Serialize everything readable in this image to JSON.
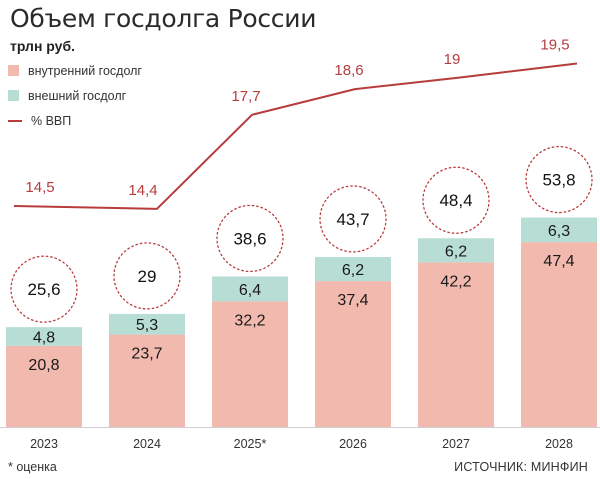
{
  "title": "Объем госдолга России",
  "unit": "трлн руб.",
  "legend": {
    "internal": "внутренний госдолг",
    "external": "внешний госдолг",
    "gdp": "% ВВП"
  },
  "footnote": "* оценка",
  "source": "ИСТОЧНИК: МИНФИН",
  "colors": {
    "internal": "#f2b9ae",
    "external": "#b7ddd5",
    "line": "#b83c3c",
    "circle": "#b83c3c"
  },
  "chart_data": {
    "type": "bar",
    "categories": [
      "2023",
      "2024",
      "2025*",
      "2026",
      "2027",
      "2028"
    ],
    "series": [
      {
        "name": "внутренний госдолг",
        "values": [
          20.8,
          23.7,
          32.2,
          37.4,
          42.2,
          47.4
        ]
      },
      {
        "name": "внешний госдолг",
        "values": [
          4.8,
          5.3,
          6.4,
          6.2,
          6.2,
          6.3
        ]
      }
    ],
    "totals": [
      "25,6",
      "29",
      "38,6",
      "43,7",
      "48,4",
      "53,8"
    ],
    "internal_labels": [
      "20,8",
      "23,7",
      "32,2",
      "37,4",
      "42,2",
      "47,4"
    ],
    "external_labels": [
      "4,8",
      "5,3",
      "6,4",
      "6,2",
      "6,2",
      "6,3"
    ],
    "line": {
      "name": "% ВВП",
      "values": [
        14.5,
        14.4,
        17.7,
        18.6,
        19,
        19.5
      ],
      "labels": [
        "14,5",
        "14,4",
        "17,7",
        "18,6",
        "19",
        "19,5"
      ]
    }
  }
}
